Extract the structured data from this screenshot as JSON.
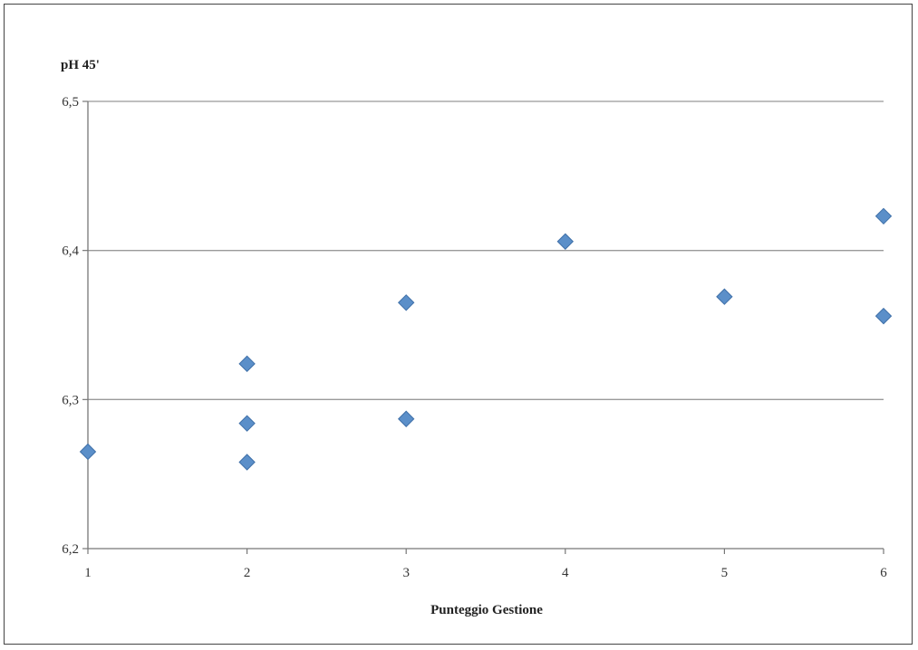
{
  "chart_data": {
    "type": "scatter",
    "title": "",
    "xlabel": "Punteggio Gestione",
    "ylabel": "pH 45'",
    "xlim": [
      1,
      6
    ],
    "ylim": [
      6.2,
      6.5
    ],
    "x_ticks": [
      1,
      2,
      3,
      4,
      5,
      6
    ],
    "x_tick_labels": [
      "1",
      "2",
      "3",
      "4",
      "5",
      "6"
    ],
    "y_ticks": [
      6.2,
      6.3,
      6.4,
      6.5
    ],
    "y_tick_labels": [
      "6,2",
      "6,3",
      "6,4",
      "6,5"
    ],
    "grid": "horizontal",
    "legend": "none",
    "marker": "diamond",
    "series": [
      {
        "color": "#5b8fc9",
        "points": [
          {
            "x": 1,
            "y": 6.265
          },
          {
            "x": 2,
            "y": 6.324
          },
          {
            "x": 2,
            "y": 6.284
          },
          {
            "x": 2,
            "y": 6.258
          },
          {
            "x": 3,
            "y": 6.365
          },
          {
            "x": 3,
            "y": 6.287
          },
          {
            "x": 4,
            "y": 6.406
          },
          {
            "x": 5,
            "y": 6.369
          },
          {
            "x": 6,
            "y": 6.423
          },
          {
            "x": 6,
            "y": 6.356
          }
        ]
      }
    ],
    "colors": {
      "grid": "#999999",
      "axis": "#777777",
      "marker_fill": "#5b8fc9",
      "marker_stroke": "#3e6fa8"
    }
  }
}
